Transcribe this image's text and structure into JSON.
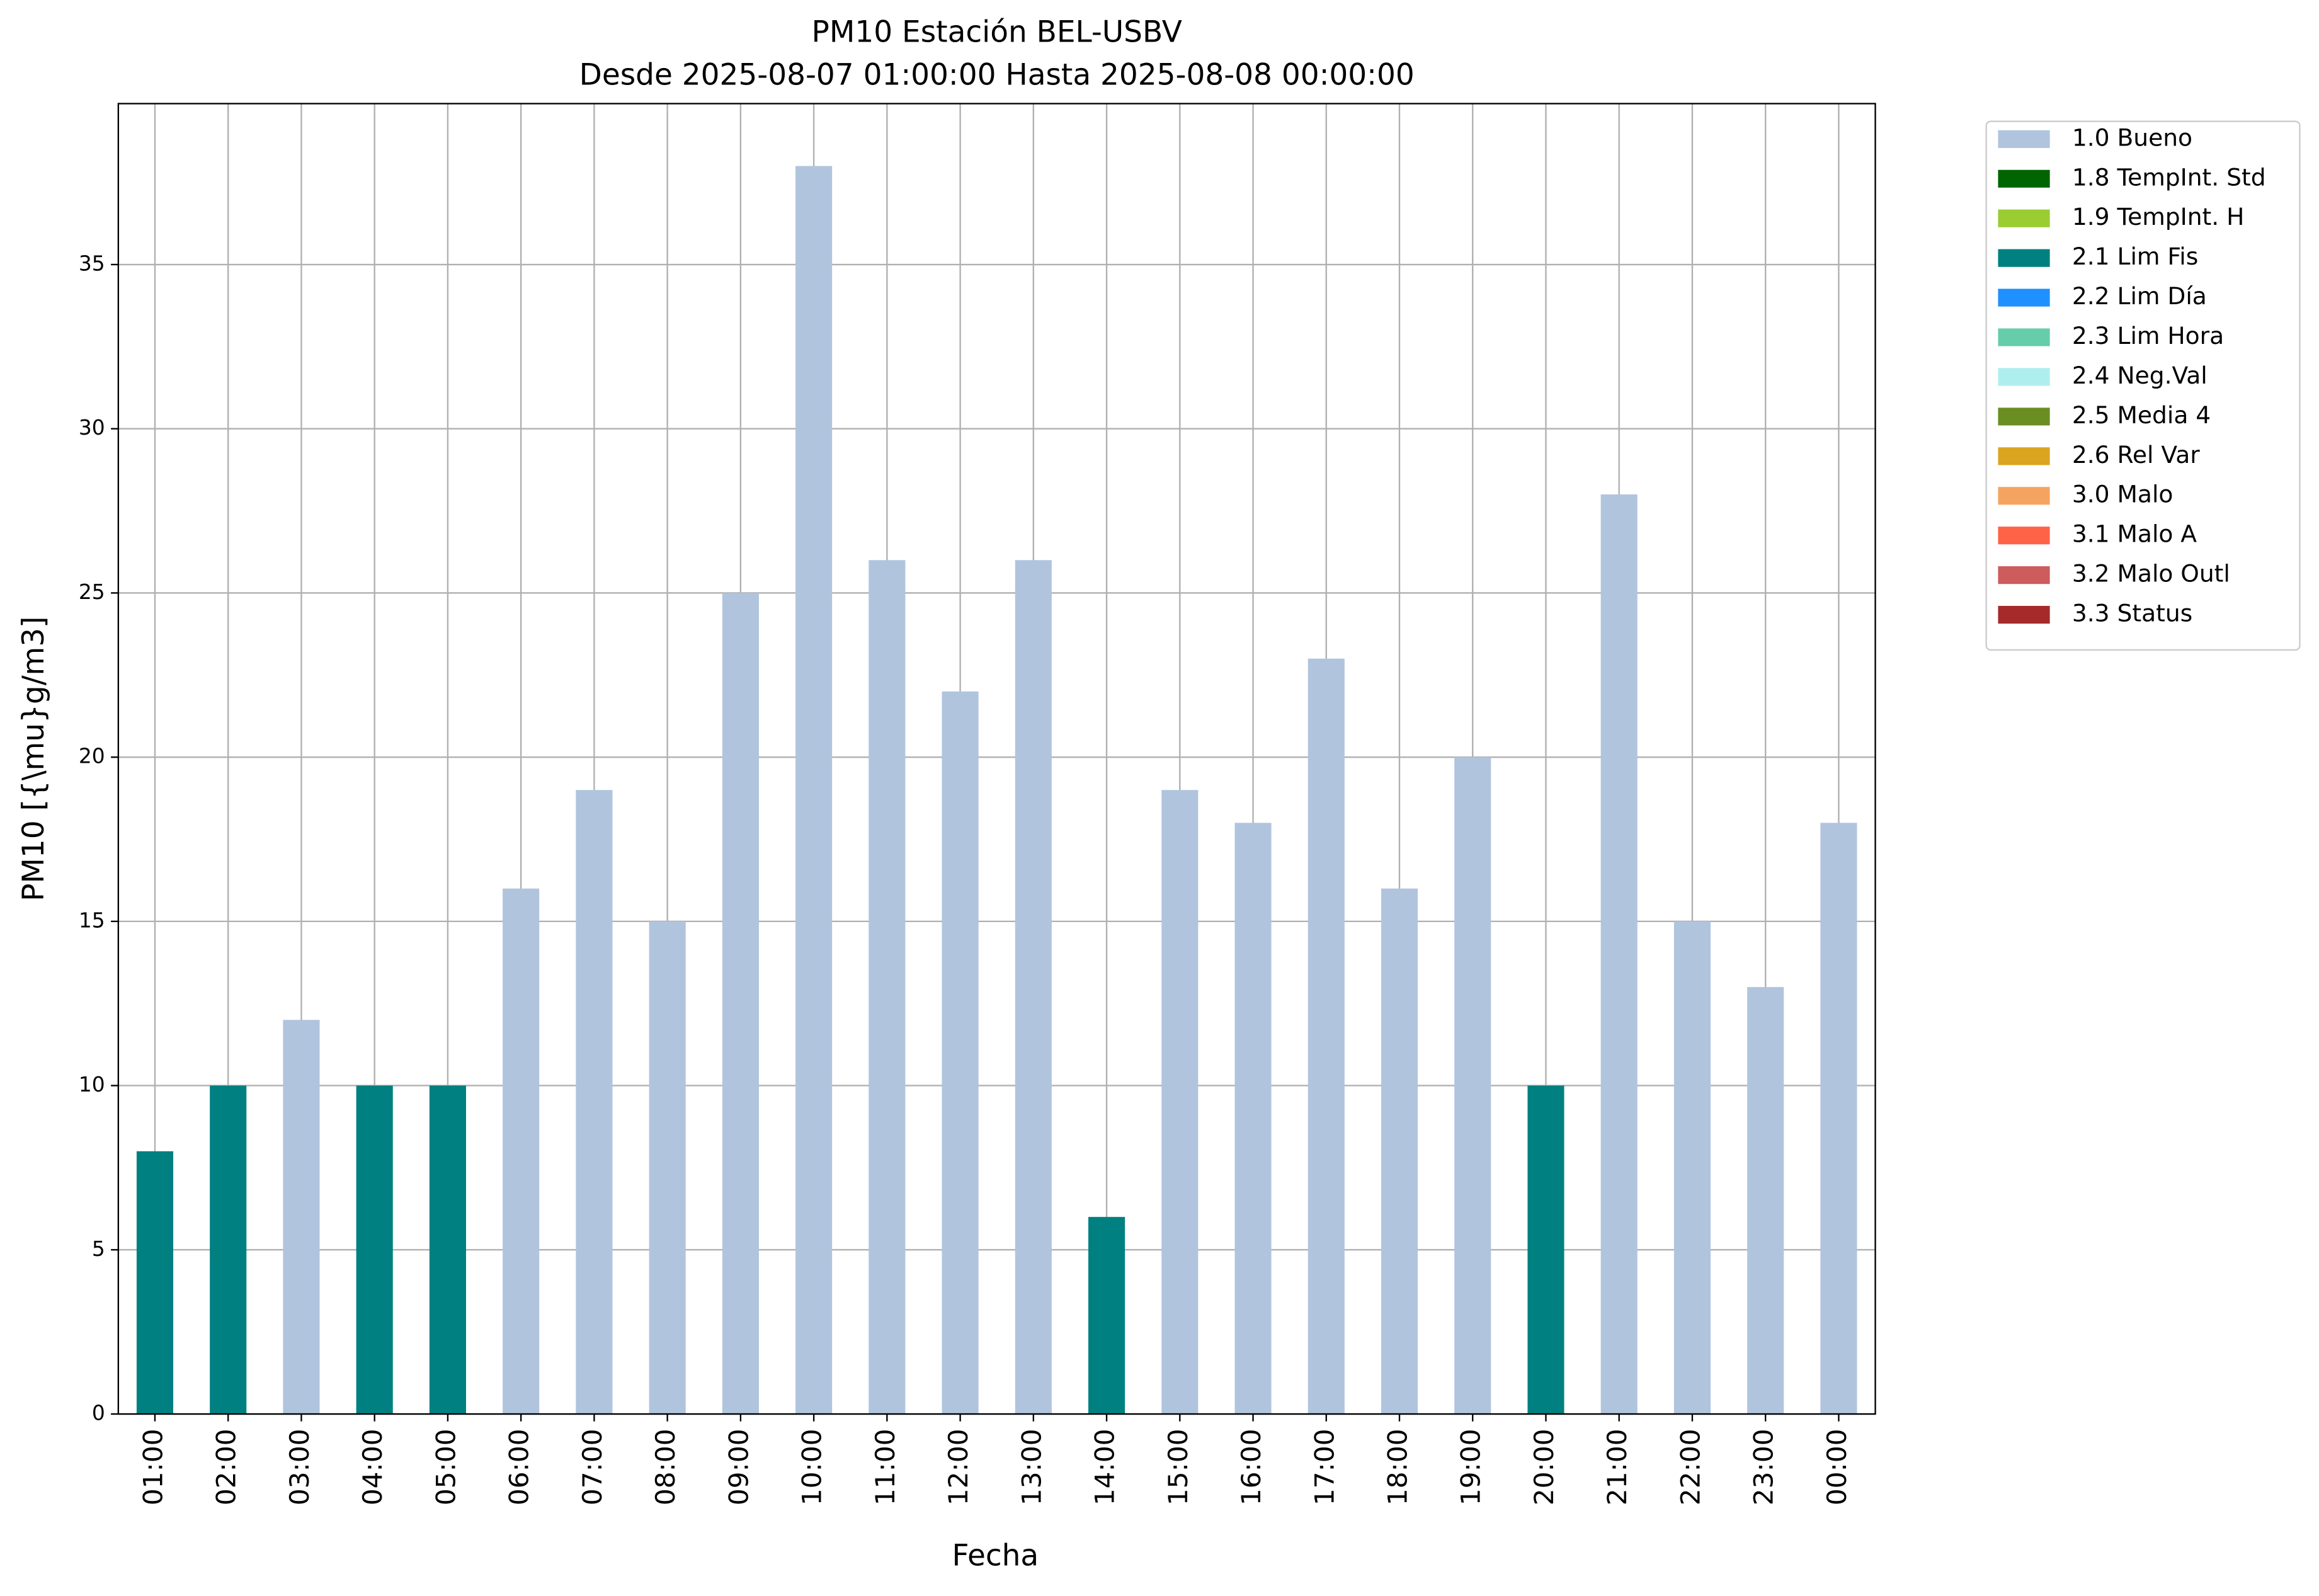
{
  "chart_data": {
    "type": "bar",
    "stacked": true,
    "title": "PM10 Estación BEL-USBV",
    "subtitle": "Desde 2025-08-07 01:00:00 Hasta 2025-08-08 00:00:00",
    "x_label": "Fecha",
    "y_label": "PM10 [{\\mu}g/m3]",
    "categories": [
      "01:00",
      "02:00",
      "03:00",
      "04:00",
      "05:00",
      "06:00",
      "07:00",
      "08:00",
      "09:00",
      "10:00",
      "11:00",
      "12:00",
      "13:00",
      "14:00",
      "15:00",
      "16:00",
      "17:00",
      "18:00",
      "19:00",
      "20:00",
      "21:00",
      "22:00",
      "23:00",
      "00:00"
    ],
    "series": [
      {
        "name": "1.0 Bueno",
        "color": "#b0c4de",
        "values": [
          null,
          null,
          12,
          null,
          null,
          16,
          19,
          15,
          25,
          38,
          26,
          22,
          26,
          null,
          19,
          18,
          23,
          16,
          20,
          null,
          28,
          15,
          13,
          18
        ]
      },
      {
        "name": "1.8 TempInt. Std",
        "color": "#006400",
        "values": [
          null,
          null,
          null,
          null,
          null,
          null,
          null,
          null,
          null,
          null,
          null,
          null,
          null,
          null,
          null,
          null,
          null,
          null,
          null,
          null,
          null,
          null,
          null,
          null
        ]
      },
      {
        "name": "1.9 TempInt. H",
        "color": "#9acd32",
        "values": [
          null,
          null,
          null,
          null,
          null,
          null,
          null,
          null,
          null,
          null,
          null,
          null,
          null,
          null,
          null,
          null,
          null,
          null,
          null,
          null,
          null,
          null,
          null,
          null
        ]
      },
      {
        "name": "2.1 Lim Fis",
        "color": "#008080",
        "values": [
          8,
          10,
          null,
          10,
          10,
          null,
          null,
          null,
          null,
          null,
          null,
          null,
          null,
          6,
          null,
          null,
          null,
          null,
          null,
          10,
          null,
          null,
          null,
          null
        ]
      },
      {
        "name": "2.2 Lim Día",
        "color": "#1e90ff",
        "values": [
          null,
          null,
          null,
          null,
          null,
          null,
          null,
          null,
          null,
          null,
          null,
          null,
          null,
          null,
          null,
          null,
          null,
          null,
          null,
          null,
          null,
          null,
          null,
          null
        ]
      },
      {
        "name": "2.3 Lim Hora",
        "color": "#66cdaa",
        "values": [
          null,
          null,
          null,
          null,
          null,
          null,
          null,
          null,
          null,
          null,
          null,
          null,
          null,
          null,
          null,
          null,
          null,
          null,
          null,
          null,
          null,
          null,
          null,
          null
        ]
      },
      {
        "name": "2.4 Neg.Val",
        "color": "#afeeee",
        "values": [
          null,
          null,
          null,
          null,
          null,
          null,
          null,
          null,
          null,
          null,
          null,
          null,
          null,
          null,
          null,
          null,
          null,
          null,
          null,
          null,
          null,
          null,
          null,
          null
        ]
      },
      {
        "name": "2.5 Media 4",
        "color": "#6b8e23",
        "values": [
          null,
          null,
          null,
          null,
          null,
          null,
          null,
          null,
          null,
          null,
          null,
          null,
          null,
          null,
          null,
          null,
          null,
          null,
          null,
          null,
          null,
          null,
          null,
          null
        ]
      },
      {
        "name": "2.6 Rel Var",
        "color": "#daa520",
        "values": [
          null,
          null,
          null,
          null,
          null,
          null,
          null,
          null,
          null,
          null,
          null,
          null,
          null,
          null,
          null,
          null,
          null,
          null,
          null,
          null,
          null,
          null,
          null,
          null
        ]
      },
      {
        "name": "3.0 Malo",
        "color": "#f4a460",
        "values": [
          null,
          null,
          null,
          null,
          null,
          null,
          null,
          null,
          null,
          null,
          null,
          null,
          null,
          null,
          null,
          null,
          null,
          null,
          null,
          null,
          null,
          null,
          null,
          null
        ]
      },
      {
        "name": "3.1 Malo A",
        "color": "#ff6347",
        "values": [
          null,
          null,
          null,
          null,
          null,
          null,
          null,
          null,
          null,
          null,
          null,
          null,
          null,
          null,
          null,
          null,
          null,
          null,
          null,
          null,
          null,
          null,
          null,
          null
        ]
      },
      {
        "name": "3.2 Malo Outl",
        "color": "#cd5c5c",
        "values": [
          null,
          null,
          null,
          null,
          null,
          null,
          null,
          null,
          null,
          null,
          null,
          null,
          null,
          null,
          null,
          null,
          null,
          null,
          null,
          null,
          null,
          null,
          null,
          null
        ]
      },
      {
        "name": "3.3 Status",
        "color": "#a52a2a",
        "values": [
          null,
          null,
          null,
          null,
          null,
          null,
          null,
          null,
          null,
          null,
          null,
          null,
          null,
          null,
          null,
          null,
          null,
          null,
          null,
          null,
          null,
          null,
          null,
          null
        ]
      }
    ],
    "ylim": [
      0,
      39.9
    ],
    "yticks": [
      0,
      5,
      10,
      15,
      20,
      25,
      30,
      35
    ],
    "grid": true,
    "legend": "outside-right"
  }
}
